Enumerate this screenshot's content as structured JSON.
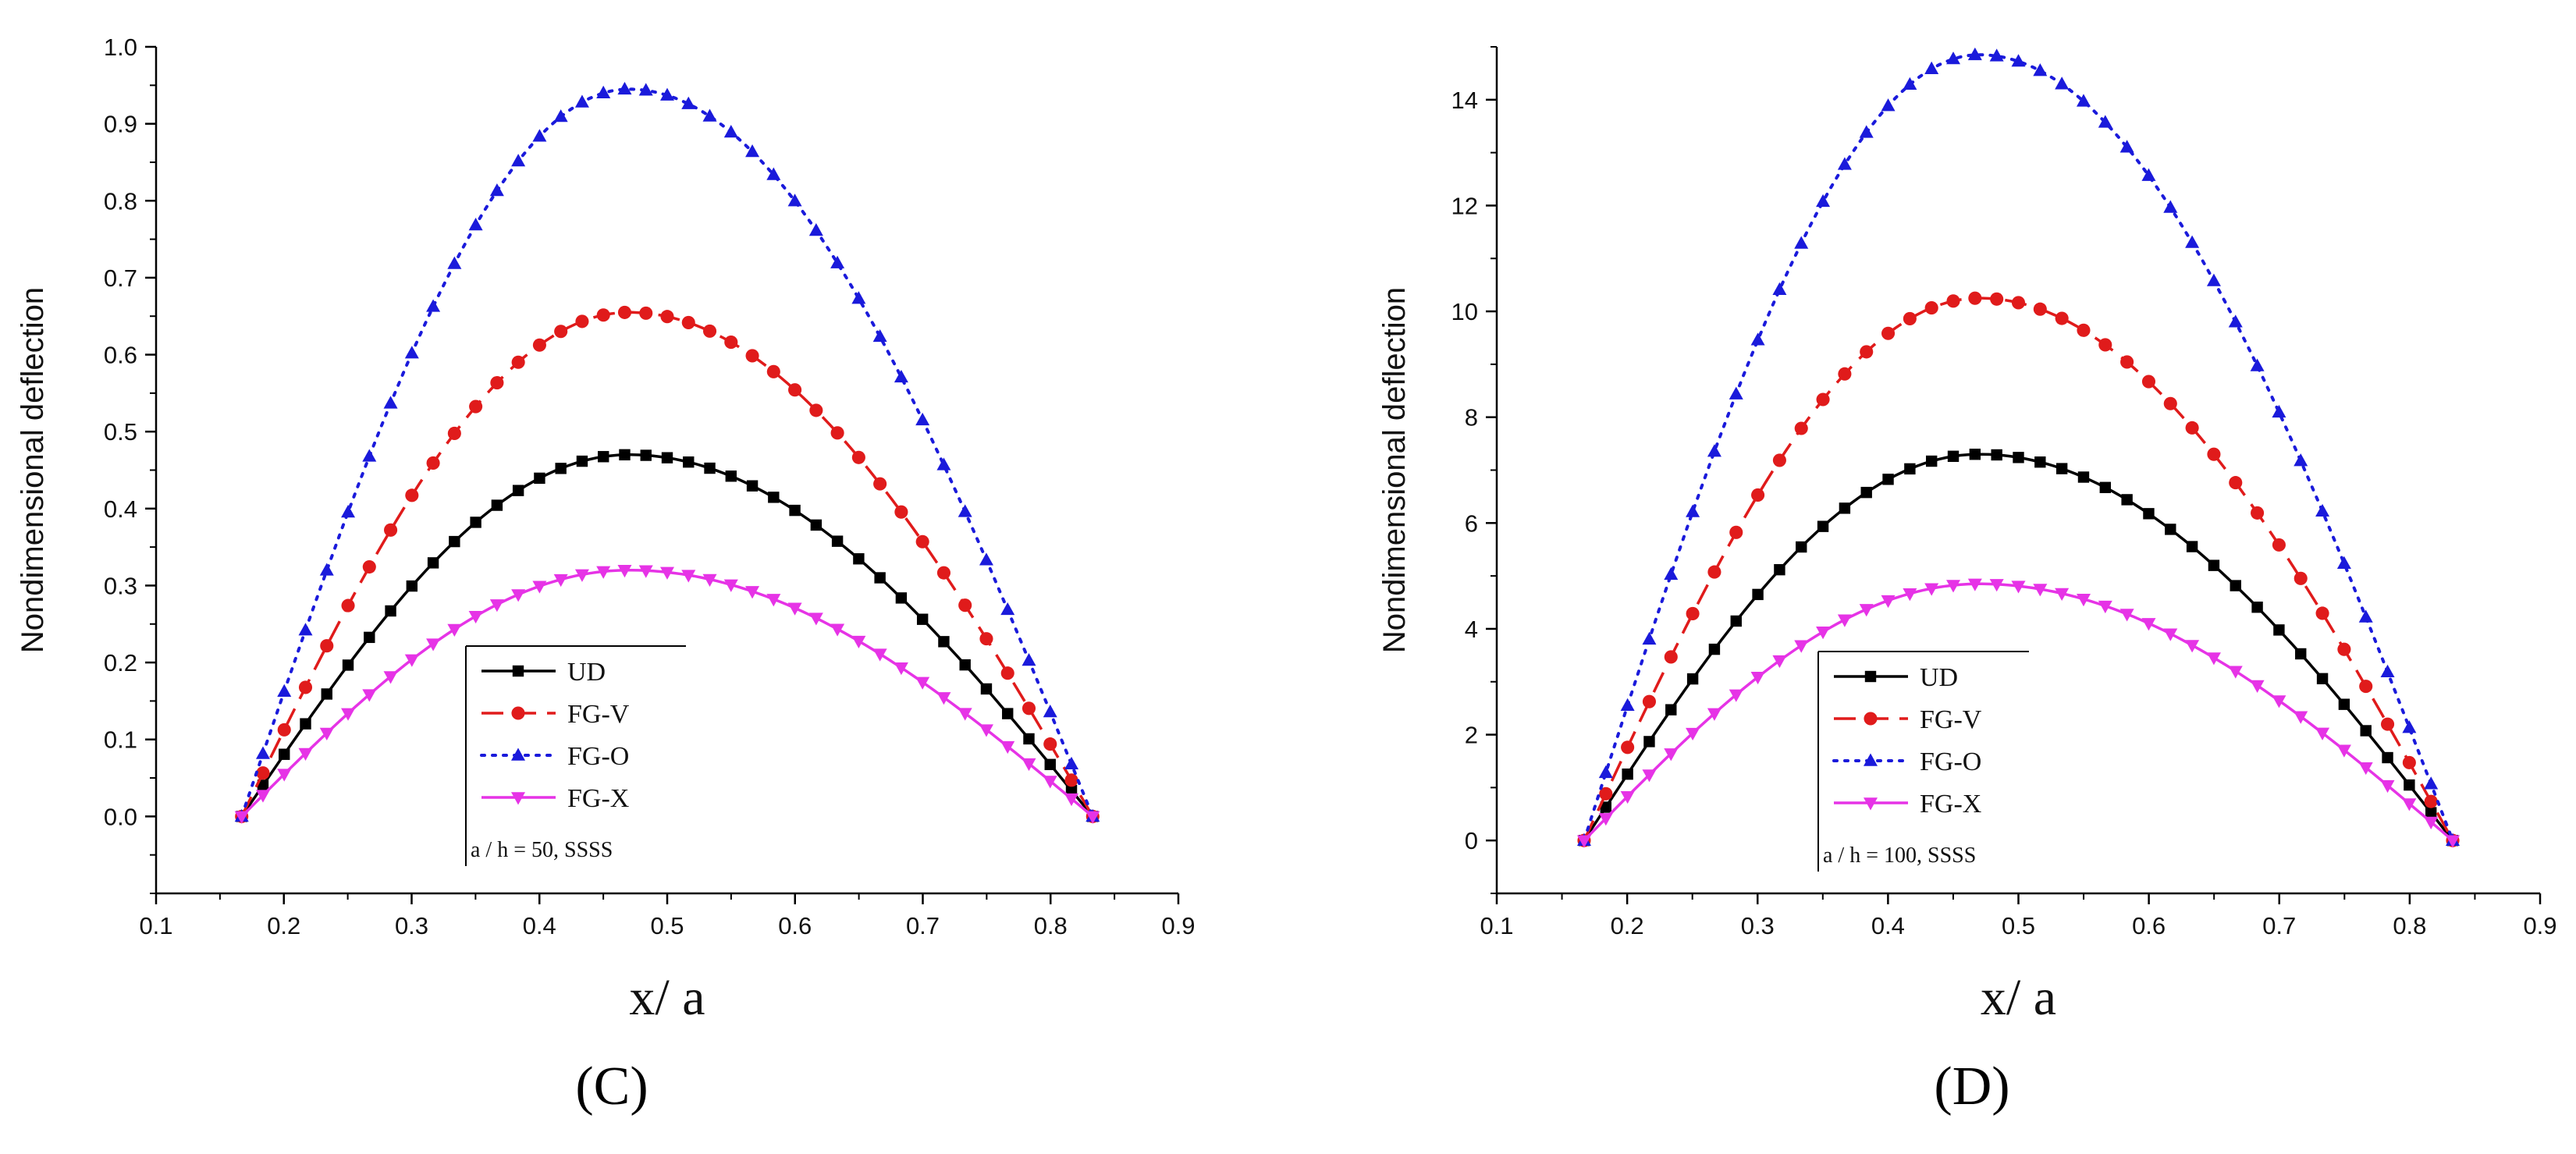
{
  "chart_data": [
    {
      "type": "line",
      "panel_label": "C",
      "xlabel": "x/ a",
      "ylabel": "Nondimensional deflection",
      "xlim": [
        0.1,
        0.9
      ],
      "ylim": [
        -0.1,
        1.0
      ],
      "xticks": [
        0.1,
        0.2,
        0.3,
        0.4,
        0.5,
        0.6,
        0.7,
        0.8,
        0.9
      ],
      "yticks": [
        0.0,
        0.1,
        0.2,
        0.3,
        0.4,
        0.5,
        0.6,
        0.7,
        0.8,
        0.9,
        1.0
      ],
      "ytick_decimals": 1,
      "legend_note": "a / h = 50, SSSS",
      "legend_position": "bottom-center",
      "x_range": [
        0.167,
        0.833
      ],
      "peak_x": 0.47,
      "series": [
        {
          "name": "UD",
          "peak": 0.47,
          "color": "#000000",
          "marker": "square",
          "line": "solid"
        },
        {
          "name": "FG-V",
          "peak": 0.655,
          "color": "#e01b1b",
          "marker": "circle",
          "line": "dashed"
        },
        {
          "name": "FG-O",
          "peak": 0.945,
          "color": "#1a1adb",
          "marker": "triangle-up",
          "line": "dotted"
        },
        {
          "name": "FG-X",
          "peak": 0.32,
          "color": "#e633e6",
          "marker": "triangle-down",
          "line": "solid"
        }
      ]
    },
    {
      "type": "line",
      "panel_label": "D",
      "xlabel": "x/ a",
      "ylabel": "Nondimensional deflection",
      "xlim": [
        0.1,
        0.9
      ],
      "ylim": [
        -1,
        15
      ],
      "xticks": [
        0.1,
        0.2,
        0.3,
        0.4,
        0.5,
        0.6,
        0.7,
        0.8,
        0.9
      ],
      "yticks": [
        0,
        2,
        4,
        6,
        8,
        10,
        12,
        14
      ],
      "ytick_decimals": 0,
      "legend_note": "a / h = 100, SSSS",
      "legend_position": "bottom-center",
      "x_range": [
        0.167,
        0.833
      ],
      "peak_x": 0.47,
      "series": [
        {
          "name": "UD",
          "peak": 7.3,
          "color": "#000000",
          "marker": "square",
          "line": "solid"
        },
        {
          "name": "FG-V",
          "peak": 10.25,
          "color": "#e01b1b",
          "marker": "circle",
          "line": "dashed"
        },
        {
          "name": "FG-O",
          "peak": 14.85,
          "color": "#1a1adb",
          "marker": "triangle-up",
          "line": "dotted"
        },
        {
          "name": "FG-X",
          "peak": 4.85,
          "color": "#e633e6",
          "marker": "triangle-down",
          "line": "solid"
        }
      ]
    }
  ]
}
